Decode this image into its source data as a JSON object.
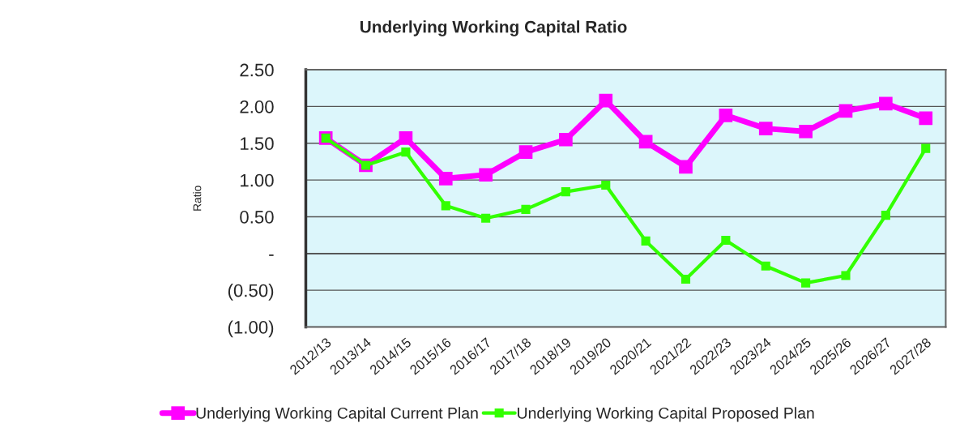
{
  "chart_data": {
    "type": "line",
    "title": "Underlying Working Capital Ratio",
    "ylabel": "Ratio",
    "categories": [
      "2012/13",
      "2013/14",
      "2014/15",
      "2015/16",
      "2016/17",
      "2017/18",
      "2018/19",
      "2019/20",
      "2020/21",
      "2021/22",
      "2022/23",
      "2023/24",
      "2024/25",
      "2025/26",
      "2026/27",
      "2027/28"
    ],
    "series": [
      {
        "name": "Underlying Working Capital Current Plan",
        "color": "#ff00ff",
        "values": [
          1.57,
          1.2,
          1.57,
          1.02,
          1.07,
          1.38,
          1.55,
          2.08,
          1.52,
          1.18,
          1.88,
          1.7,
          1.66,
          1.94,
          2.04,
          1.84
        ]
      },
      {
        "name": "Underlying Working Capital Proposed Plan",
        "color": "#33ff00",
        "values": [
          1.57,
          1.2,
          1.38,
          0.65,
          0.48,
          0.6,
          0.84,
          0.93,
          0.17,
          -0.35,
          0.18,
          -0.17,
          -0.4,
          -0.3,
          0.52,
          1.43
        ]
      }
    ],
    "ylim": [
      -1.0,
      2.5
    ],
    "yticks": [
      {
        "value": 2.5,
        "label": "2.50"
      },
      {
        "value": 2.0,
        "label": "2.00"
      },
      {
        "value": 1.5,
        "label": "1.50"
      },
      {
        "value": 1.0,
        "label": "1.00"
      },
      {
        "value": 0.5,
        "label": "0.50"
      },
      {
        "value": 0,
        "label": "-"
      },
      {
        "value": -0.5,
        "label": "(0.50)"
      },
      {
        "value": -1.0,
        "label": "(1.00)"
      }
    ],
    "grid": "y",
    "legend": "bottom",
    "marker": "square",
    "line_style": "solid"
  }
}
